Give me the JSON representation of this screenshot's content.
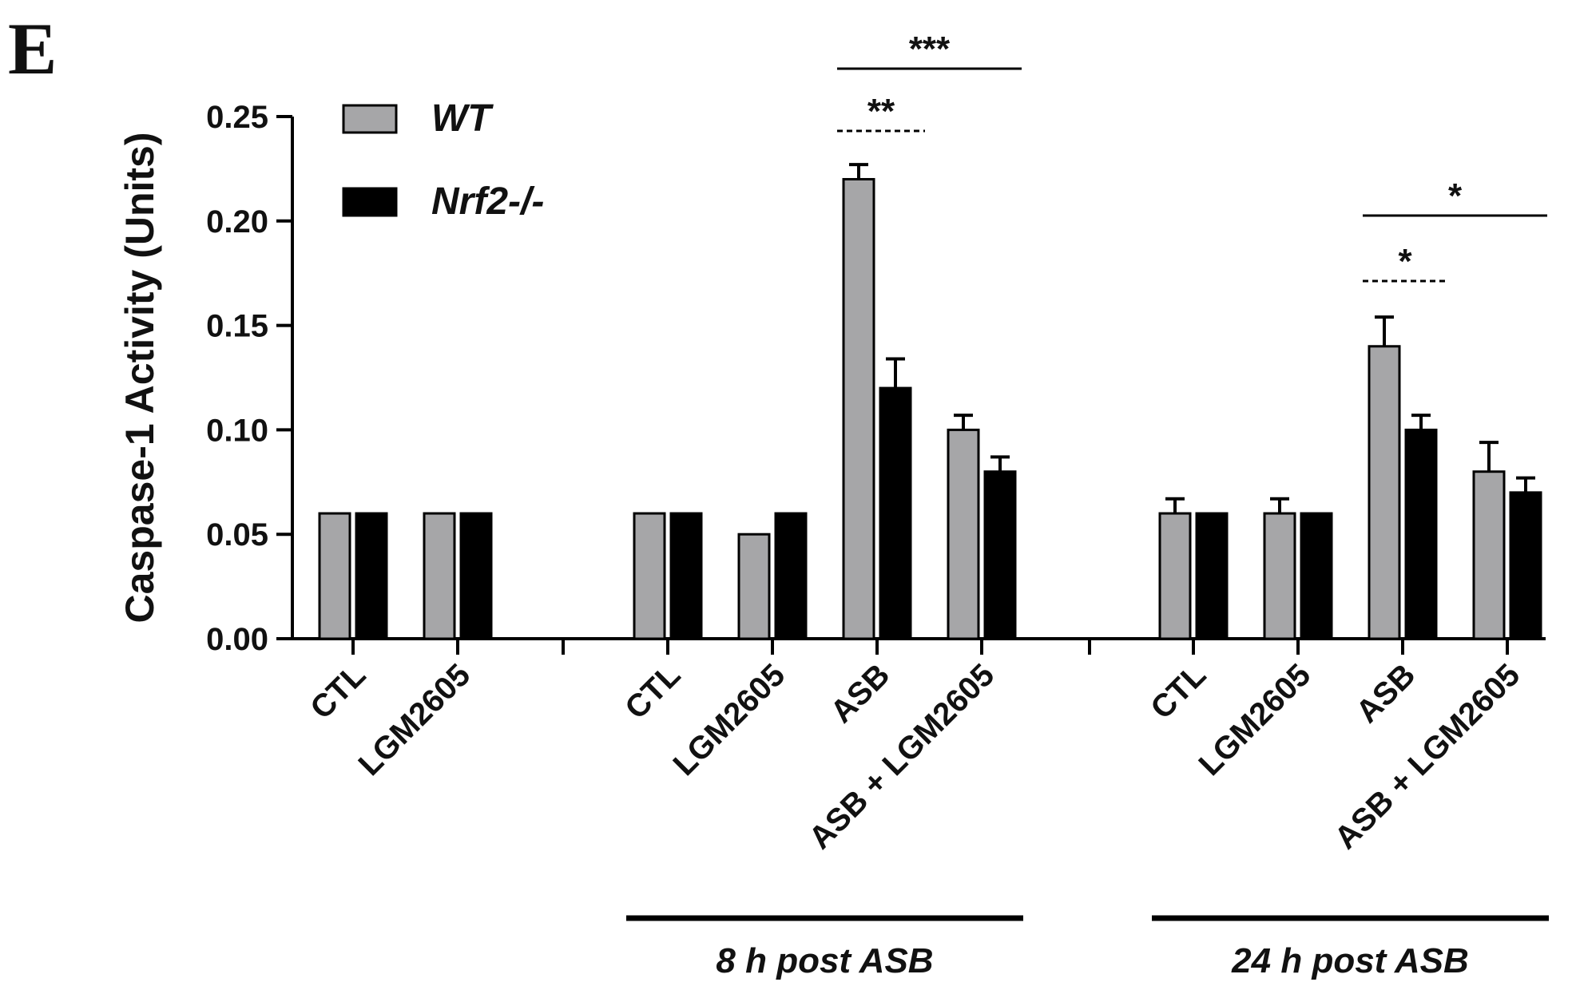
{
  "panel_label": "E",
  "chart_data": {
    "type": "bar",
    "ylabel": "Caspase-1 Activity (Units)",
    "xlabel": "",
    "ylim": [
      0,
      0.25
    ],
    "yticks": [
      "0.00",
      "0.05",
      "0.10",
      "0.15",
      "0.20",
      "0.25"
    ],
    "legend_position": "top-left",
    "grid": false,
    "series": [
      {
        "name": "WT",
        "color": "#a6a6a8"
      },
      {
        "name": "Nrf2-/-",
        "color": "#000000"
      }
    ],
    "groups": [
      {
        "label": "",
        "categories": [
          {
            "label": "CTL",
            "WT": 0.06,
            "WT_err": 0,
            "KO": 0.06,
            "KO_err": 0
          },
          {
            "label": "LGM2605",
            "WT": 0.06,
            "WT_err": 0,
            "KO": 0.06,
            "KO_err": 0
          }
        ]
      },
      {
        "label": "8 h post ASB",
        "categories": [
          {
            "label": "CTL",
            "WT": 0.06,
            "WT_err": 0,
            "KO": 0.06,
            "KO_err": 0
          },
          {
            "label": "LGM2605",
            "WT": 0.05,
            "WT_err": 0,
            "KO": 0.06,
            "KO_err": 0
          },
          {
            "label": "ASB",
            "WT": 0.22,
            "WT_err": 0.007,
            "KO": 0.12,
            "KO_err": 0.014
          },
          {
            "label": "ASB + LGM2605",
            "WT": 0.1,
            "WT_err": 0.007,
            "KO": 0.08,
            "KO_err": 0.007
          }
        ]
      },
      {
        "label": "24 h post ASB",
        "categories": [
          {
            "label": "CTL",
            "WT": 0.06,
            "WT_err": 0.007,
            "KO": 0.06,
            "KO_err": 0
          },
          {
            "label": "LGM2605",
            "WT": 0.06,
            "WT_err": 0.007,
            "KO": 0.06,
            "KO_err": 0
          },
          {
            "label": "ASB",
            "WT": 0.14,
            "WT_err": 0.014,
            "KO": 0.1,
            "KO_err": 0.007
          },
          {
            "label": "ASB + LGM2605",
            "WT": 0.08,
            "WT_err": 0.014,
            "KO": 0.07,
            "KO_err": 0.007
          }
        ]
      }
    ],
    "annotations": [
      {
        "text": "***",
        "group": 1,
        "from": 2,
        "to": 3,
        "style": "solid"
      },
      {
        "text": "**",
        "group": 1,
        "from": 2,
        "to": 2.75,
        "style": "dashed"
      },
      {
        "text": "*",
        "group": 2,
        "from": 2,
        "to": 3,
        "style": "solid"
      },
      {
        "text": "*",
        "group": 2,
        "from": 2,
        "to": 2.75,
        "style": "dashed"
      }
    ]
  }
}
